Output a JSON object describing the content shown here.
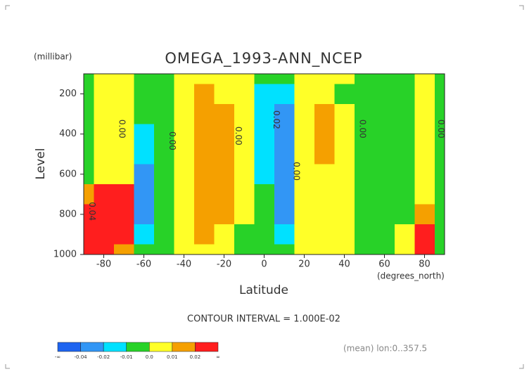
{
  "chart_data": {
    "type": "contour",
    "title": "OMEGA_1993-ANN_NCEP",
    "y_unit": "(millibar)",
    "ylabel": "Level",
    "xlabel": "Latitude",
    "x_unit": "(degrees_north)",
    "subtitle": "CONTOUR INTERVAL = 1.000E-02",
    "footnote": "(mean) lon:0..357.5",
    "x": [
      -90,
      -80,
      -70,
      -60,
      -50,
      -40,
      -30,
      -20,
      -10,
      0,
      10,
      20,
      30,
      40,
      50,
      60,
      70,
      80,
      90
    ],
    "y": [
      100,
      200,
      300,
      400,
      500,
      600,
      700,
      800,
      900,
      1000
    ],
    "z": [
      [
        -0.005,
        0.005,
        0.005,
        -0.005,
        -0.005,
        0.005,
        0.005,
        0.005,
        0.005,
        -0.005,
        -0.005,
        0.005,
        0.005,
        0.005,
        -0.005,
        -0.005,
        -0.005,
        0.005,
        -0.005
      ],
      [
        -0.005,
        0.005,
        0.005,
        -0.005,
        -0.005,
        0.005,
        0.015,
        0.005,
        0.005,
        -0.015,
        -0.015,
        0.005,
        0.005,
        -0.005,
        -0.005,
        -0.005,
        -0.005,
        0.005,
        -0.005
      ],
      [
        -0.005,
        0.005,
        0.005,
        -0.005,
        -0.005,
        0.005,
        0.015,
        0.015,
        0.005,
        -0.015,
        -0.03,
        0.005,
        0.015,
        0.005,
        -0.005,
        -0.005,
        -0.005,
        0.005,
        -0.005
      ],
      [
        -0.005,
        0.005,
        0.005,
        -0.015,
        -0.005,
        0.005,
        0.015,
        0.015,
        0.005,
        -0.015,
        -0.03,
        0.005,
        0.015,
        0.005,
        -0.005,
        -0.005,
        -0.005,
        0.005,
        -0.005
      ],
      [
        -0.005,
        0.005,
        0.005,
        -0.015,
        -0.005,
        0.005,
        0.015,
        0.015,
        0.005,
        -0.015,
        -0.03,
        0.005,
        0.015,
        0.005,
        -0.005,
        -0.005,
        -0.005,
        0.005,
        -0.005
      ],
      [
        -0.005,
        0.005,
        0.005,
        -0.03,
        -0.005,
        0.005,
        0.015,
        0.015,
        0.005,
        -0.015,
        -0.03,
        0.005,
        0.005,
        0.005,
        -0.005,
        -0.005,
        -0.005,
        0.005,
        -0.005
      ],
      [
        0.015,
        0.03,
        0.03,
        -0.03,
        -0.005,
        0.005,
        0.015,
        0.015,
        0.005,
        -0.005,
        -0.03,
        0.005,
        0.005,
        0.005,
        -0.005,
        -0.005,
        -0.005,
        0.005,
        -0.005
      ],
      [
        0.03,
        0.03,
        0.03,
        -0.03,
        -0.005,
        0.005,
        0.015,
        0.015,
        0.005,
        -0.005,
        -0.03,
        0.005,
        0.005,
        0.005,
        -0.005,
        -0.005,
        -0.005,
        0.015,
        -0.005
      ],
      [
        0.03,
        0.03,
        0.03,
        -0.015,
        -0.005,
        0.005,
        0.015,
        0.005,
        -0.005,
        -0.005,
        -0.015,
        0.005,
        0.005,
        0.005,
        -0.005,
        -0.005,
        0.005,
        0.03,
        -0.005
      ],
      [
        0.03,
        0.03,
        0.015,
        -0.005,
        -0.005,
        0.005,
        0.005,
        0.005,
        -0.005,
        -0.005,
        -0.005,
        0.005,
        0.005,
        0.005,
        -0.005,
        -0.005,
        0.005,
        0.03,
        -0.005
      ]
    ],
    "xlim": [
      -90,
      90
    ],
    "ylim": [
      1000,
      100
    ],
    "xticks": [
      -80,
      -60,
      -40,
      -20,
      0,
      20,
      40,
      60,
      80
    ],
    "yticks": [
      200,
      400,
      600,
      800,
      1000
    ],
    "contour_labels": [
      {
        "text": "0.04",
        "x": -86,
        "y": 785
      },
      {
        "text": "0.00",
        "x": -71,
        "y": 374
      },
      {
        "text": "0.00",
        "x": -46,
        "y": 434
      },
      {
        "text": "0.00",
        "x": -13,
        "y": 409
      },
      {
        "text": "0.02",
        "x": 6,
        "y": 329
      },
      {
        "text": "0.00",
        "x": 16,
        "y": 585
      },
      {
        "text": "0.00",
        "x": 49,
        "y": 374
      },
      {
        "text": "0.00",
        "x": 88,
        "y": 374
      }
    ],
    "bounds": [
      "-∞",
      -0.04,
      -0.02,
      -0.01,
      {
        "value": 0,
        "label": "0.0"
      },
      0.01,
      0.02,
      "∞"
    ],
    "colors": [
      "#1e64f0",
      "#3296f5",
      "#00e1ff",
      "#28d228",
      "#ffff28",
      "#f5a000",
      "#ff1e1e"
    ]
  }
}
